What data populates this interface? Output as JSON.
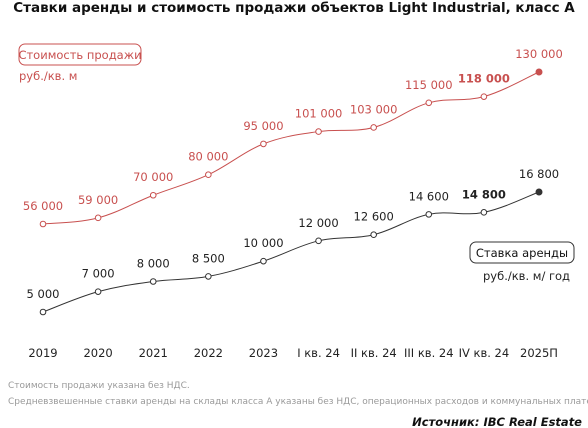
{
  "chart_data": {
    "type": "line",
    "title": "Ставки аренды и стоимость продажи объектов Light Industrial, класс А",
    "categories": [
      "2019",
      "2020",
      "2021",
      "2022",
      "2023",
      "I кв. 24",
      "II кв. 24",
      "III кв. 24",
      "IV кв. 24",
      "2025П"
    ],
    "series": [
      {
        "name": "Стоимость продажи",
        "unit": "руб./кв. м",
        "color": "#c8504f",
        "values": [
          56000,
          59000,
          70000,
          80000,
          95000,
          101000,
          103000,
          115000,
          118000,
          130000
        ],
        "labels": [
          "56 000",
          "59 000",
          "70 000",
          "80 000",
          "95 000",
          "101 000",
          "103 000",
          "115 000",
          "118 000",
          "130 000"
        ],
        "bold_index": 8
      },
      {
        "name": "Ставка аренды",
        "unit": "руб./кв. м/ год",
        "color": "#333333",
        "values": [
          5000,
          7000,
          8000,
          8500,
          10000,
          12000,
          12600,
          14600,
          14800,
          16800
        ],
        "labels": [
          "5 000",
          "7 000",
          "8 000",
          "8 500",
          "10 000",
          "12 000",
          "12 600",
          "14 600",
          "14 800",
          "16 800"
        ],
        "bold_index": 8
      }
    ],
    "notes": [
      "Стоимость продажи указана без НДС.",
      "Средневзвешенные ставки аренды на склады класса А указаны без НДС, операционных расходов и коммунальных платежей."
    ],
    "source": "Источник: IBC Real Estate",
    "grid": false,
    "legend": "pill labels (top-left for sale price, right for rent)"
  }
}
